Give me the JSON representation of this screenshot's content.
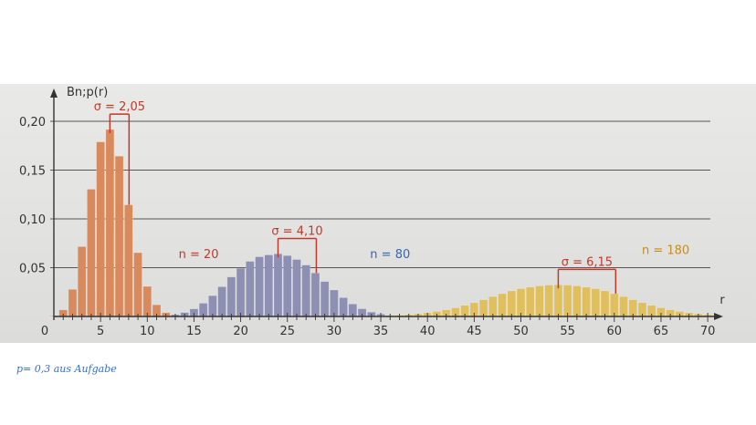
{
  "chart_data": {
    "type": "bar",
    "ylabel": "Bn;p(r)",
    "xlabel": "r",
    "xlim": [
      0,
      70
    ],
    "ylim": [
      0,
      0.2
    ],
    "x_ticks": [
      5,
      10,
      15,
      20,
      25,
      30,
      35,
      40,
      45,
      50,
      55,
      60,
      65,
      70
    ],
    "x_tick_labels": [
      "5",
      "10",
      "15",
      "20",
      "25",
      "30",
      "35",
      "40",
      "45",
      "50",
      "55",
      "60",
      "65",
      "70"
    ],
    "origin_label": "0",
    "y_ticks": [
      0.05,
      0.1,
      0.15,
      0.2
    ],
    "y_tick_labels": [
      "0,05",
      "0,10",
      "0,15",
      "0,20"
    ],
    "grid": "horizontal",
    "series": [
      {
        "name": "n = 20",
        "n": 20,
        "p": 0.3,
        "color": "#d98a5c",
        "label_color": "#c0392b",
        "sigma_label": "σ = 2,05",
        "mean": 6,
        "sigma": 2.05,
        "x": [
          0,
          1,
          2,
          3,
          4,
          5,
          6,
          7,
          8,
          9,
          10,
          11,
          12,
          13
        ],
        "values": [
          0.0008,
          0.0068,
          0.0278,
          0.0716,
          0.1304,
          0.1789,
          0.1916,
          0.1643,
          0.1144,
          0.0654,
          0.0308,
          0.012,
          0.0039,
          0.001
        ]
      },
      {
        "name": "n = 80",
        "n": 80,
        "p": 0.3,
        "color": "#8d8fb3",
        "label_color": "#3a66b0",
        "sigma_label": "σ = 4,10",
        "mean": 24,
        "sigma": 4.1,
        "x": [
          13,
          14,
          15,
          16,
          17,
          18,
          19,
          20,
          21,
          22,
          23,
          24,
          25,
          26,
          27,
          28,
          29,
          30,
          31,
          32,
          33,
          34,
          35,
          36,
          37
        ],
        "values": [
          0.0019,
          0.0041,
          0.0078,
          0.0136,
          0.0213,
          0.0305,
          0.0405,
          0.0494,
          0.0565,
          0.0612,
          0.0631,
          0.0642,
          0.0624,
          0.0584,
          0.0527,
          0.0446,
          0.0358,
          0.0271,
          0.0193,
          0.0128,
          0.0079,
          0.0045,
          0.0024,
          0.0012,
          0.0005
        ]
      },
      {
        "name": "n = 180",
        "n": 180,
        "p": 0.3,
        "color": "#e0bf5f",
        "label_color": "#c98c1c",
        "sigma_label": "σ = 6,15",
        "mean": 54,
        "sigma": 6.15,
        "x": [
          35,
          36,
          37,
          38,
          39,
          40,
          41,
          42,
          43,
          44,
          45,
          46,
          47,
          48,
          49,
          50,
          51,
          52,
          53,
          54,
          55,
          56,
          57,
          58,
          59,
          60,
          61,
          62,
          63,
          64,
          65,
          66,
          67,
          68,
          69,
          70
        ],
        "values": [
          0.0006,
          0.0009,
          0.0013,
          0.0019,
          0.0027,
          0.0038,
          0.0052,
          0.0069,
          0.0089,
          0.0114,
          0.0142,
          0.0172,
          0.0204,
          0.0234,
          0.0262,
          0.0285,
          0.0301,
          0.0314,
          0.0322,
          0.0325,
          0.0322,
          0.0314,
          0.0301,
          0.0285,
          0.0262,
          0.0234,
          0.0204,
          0.0172,
          0.0142,
          0.0114,
          0.0089,
          0.0069,
          0.0052,
          0.0038,
          0.0027,
          0.0019
        ]
      }
    ]
  },
  "note": "p= 0,3 aus Aufgabe"
}
